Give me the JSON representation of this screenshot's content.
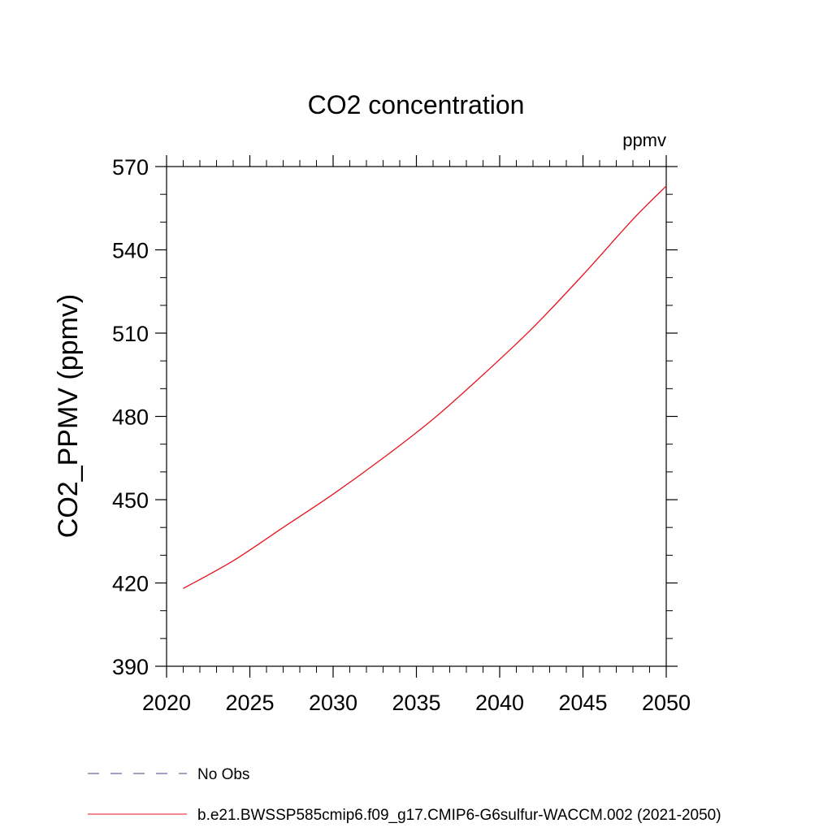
{
  "chart_data": {
    "type": "line",
    "title": "CO2 concentration",
    "units": "ppmv",
    "xlabel": "",
    "ylabel": "CO2_PPMV  (ppmv)",
    "xlim": [
      2020,
      2050
    ],
    "ylim": [
      390,
      570
    ],
    "x_ticks": [
      2020,
      2025,
      2030,
      2035,
      2040,
      2045,
      2050
    ],
    "y_ticks": [
      390,
      420,
      450,
      480,
      510,
      540,
      570
    ],
    "grid": false,
    "legend_position": "bottom",
    "series": [
      {
        "name": "No Obs",
        "color": "#5a3a8a",
        "style": "dashed",
        "x": [],
        "y": []
      },
      {
        "name": "b.e21.BWSSP585cmip6.f09_g17.CMIP6-G6sulfur-WACCM.002 (2021-2050)",
        "color": "#e8141e",
        "style": "solid",
        "x": [
          2021,
          2024,
          2027,
          2030,
          2033,
          2036,
          2039,
          2042,
          2045,
          2048,
          2050
        ],
        "y": [
          418,
          428,
          440,
          452,
          465,
          479,
          495,
          512,
          531,
          551,
          563
        ]
      }
    ]
  }
}
